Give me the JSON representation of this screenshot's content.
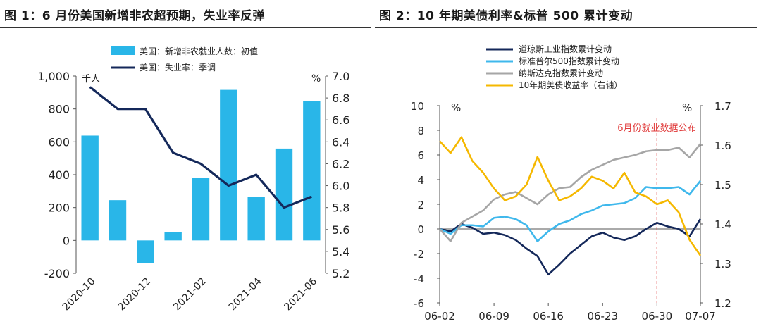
{
  "chart_data": [
    {
      "type": "bar",
      "title": "图 1：6 月份美国新增非农超预期，失业率反弹",
      "categories": [
        "2020-10",
        "2020-11",
        "2020-12",
        "2021-01",
        "2021-02",
        "2021-03",
        "2021-04",
        "2021-05",
        "2021-06"
      ],
      "xtick_labels": [
        "2020-10",
        "2020-12",
        "2021-02",
        "2021-04",
        "2021-06"
      ],
      "left_unit": "千人",
      "right_unit": "%",
      "ylim_left": [
        -200,
        1000
      ],
      "yticks_left": [
        "-200",
        "0",
        "200",
        "400",
        "600",
        "800",
        "1,000"
      ],
      "ylim_right": [
        5.2,
        7.0
      ],
      "yticks_right": [
        "5.2",
        "5.4",
        "5.6",
        "5.8",
        "6.0",
        "6.2",
        "6.4",
        "6.6",
        "6.8",
        "7.0"
      ],
      "series": [
        {
          "name": "美国：新增非农就业人数：初值",
          "type": "bar",
          "axis": "left",
          "color": "#29b6e8",
          "values": [
            638,
            245,
            -140,
            49,
            379,
            916,
            266,
            559,
            850
          ]
        },
        {
          "name": "美国：失业率：季调",
          "type": "line",
          "axis": "right",
          "color": "#14285a",
          "values": [
            6.9,
            6.7,
            6.7,
            6.3,
            6.2,
            6.0,
            6.1,
            5.8,
            5.9
          ]
        }
      ]
    },
    {
      "type": "line",
      "title": "图 2：10 年期美债利率&标普 500 累计变动",
      "x": [
        "06-02",
        "06-03",
        "06-04",
        "06-07",
        "06-08",
        "06-09",
        "06-10",
        "06-11",
        "06-14",
        "06-15",
        "06-16",
        "06-17",
        "06-18",
        "06-21",
        "06-22",
        "06-23",
        "06-24",
        "06-25",
        "06-28",
        "06-29",
        "06-30",
        "07-01",
        "07-02",
        "07-06",
        "07-07"
      ],
      "xtick_labels": [
        "06-02",
        "06-09",
        "06-16",
        "06-23",
        "06-30",
        "07-07"
      ],
      "left_unit": "%",
      "right_unit": "%",
      "ylim_left": [
        -6,
        10
      ],
      "yticks_left": [
        "-6",
        "-4",
        "-2",
        "0",
        "2",
        "4",
        "6",
        "8",
        "10"
      ],
      "ylim_right": [
        1.2,
        1.7
      ],
      "yticks_right": [
        "1.2",
        "1.3",
        "1.4",
        "1.5",
        "1.6",
        "1.7"
      ],
      "annotation": "6月份就业数据公布",
      "annotation_x": "06-30",
      "series": [
        {
          "name": "道琼斯工业指数累计变动",
          "axis": "left",
          "color": "#14285a",
          "values": [
            0,
            -0.2,
            0.4,
            0.1,
            -0.4,
            -0.3,
            -0.5,
            -0.9,
            -1.6,
            -2.2,
            -3.7,
            -2.9,
            -2.0,
            -1.3,
            -0.6,
            -0.3,
            -0.7,
            -0.9,
            -0.6,
            0.0,
            0.5,
            0.2,
            0.0,
            -0.6,
            0.8
          ]
        },
        {
          "name": "标准普尔500指数累计变动",
          "axis": "left",
          "color": "#3fb8ec",
          "values": [
            0,
            -0.4,
            0.3,
            0.3,
            0.2,
            0.9,
            1.0,
            0.8,
            0.3,
            -1.0,
            -0.2,
            0.4,
            0.7,
            1.2,
            1.5,
            1.9,
            2.0,
            2.1,
            2.5,
            3.4,
            3.3,
            3.3,
            3.4,
            2.8,
            3.9
          ]
        },
        {
          "name": "纳斯达克指数累计变动",
          "axis": "left",
          "color": "#a6a6a6",
          "values": [
            0,
            -1.0,
            0.5,
            1.0,
            1.5,
            2.4,
            2.8,
            3.0,
            2.5,
            2.0,
            2.8,
            3.3,
            3.4,
            4.2,
            4.8,
            5.2,
            5.6,
            5.8,
            6.0,
            6.3,
            6.4,
            6.4,
            6.6,
            5.8,
            6.9
          ]
        },
        {
          "name": "10年期美债收益率（右轴）",
          "axis": "right",
          "color": "#f5b800",
          "values": [
            1.61,
            1.58,
            1.62,
            1.56,
            1.53,
            1.49,
            1.46,
            1.47,
            1.5,
            1.57,
            1.51,
            1.46,
            1.47,
            1.49,
            1.52,
            1.51,
            1.49,
            1.53,
            1.48,
            1.47,
            1.45,
            1.46,
            1.43,
            1.36,
            1.32
          ]
        }
      ]
    }
  ]
}
